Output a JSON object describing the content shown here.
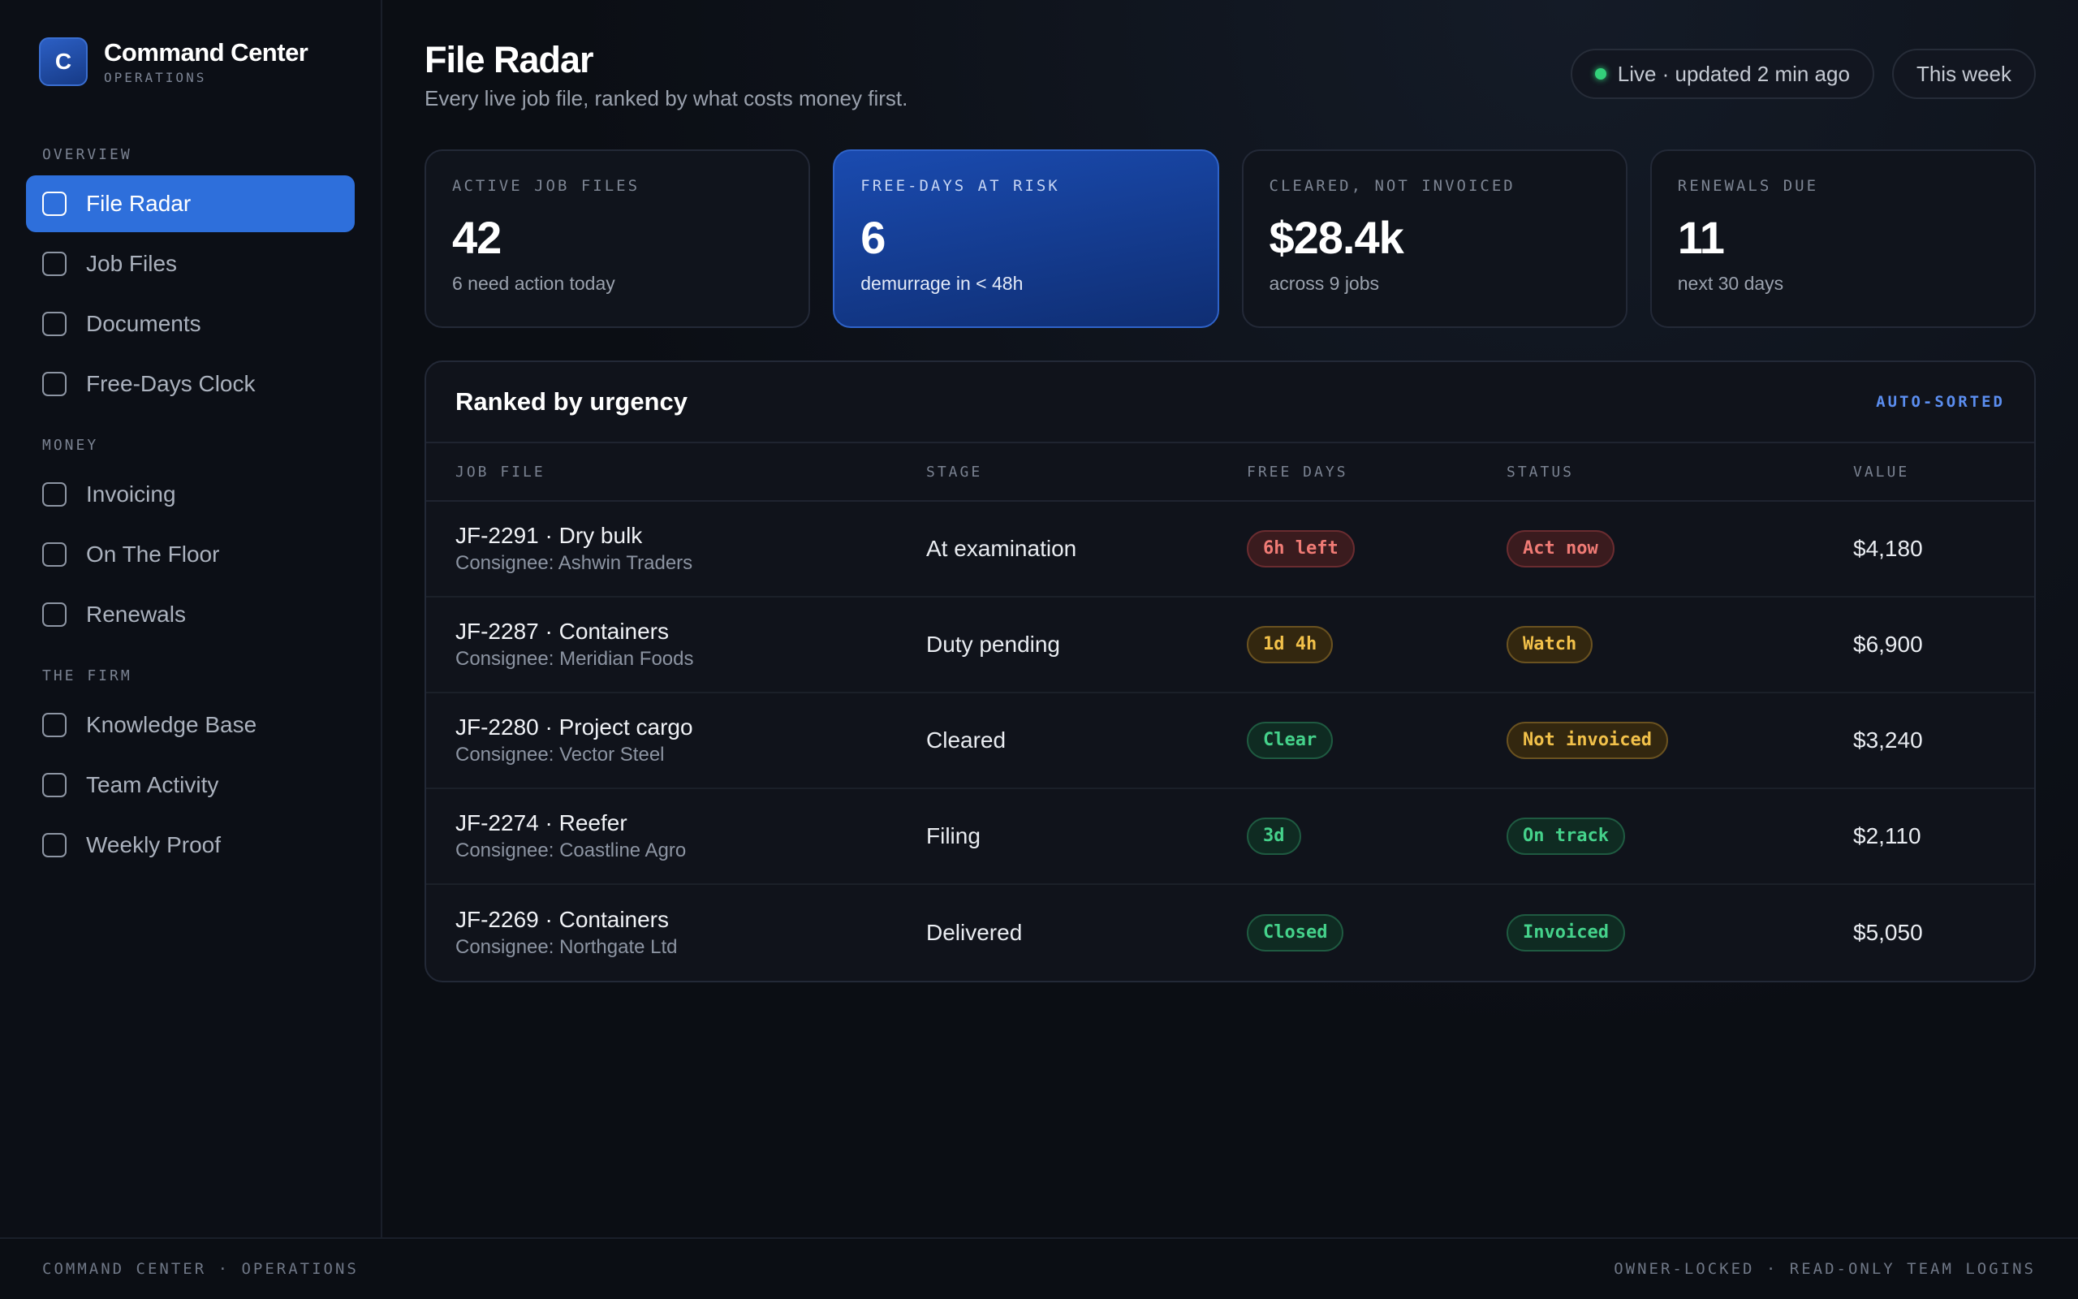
{
  "brand": {
    "logo_letter": "C",
    "name": "Command Center",
    "sub": "OPERATIONS"
  },
  "sidebar": {
    "sections": [
      {
        "heading": "OVERVIEW",
        "items": [
          {
            "label": "File Radar",
            "active": true
          },
          {
            "label": "Job Files"
          },
          {
            "label": "Documents"
          },
          {
            "label": "Free-Days Clock"
          }
        ]
      },
      {
        "heading": "MONEY",
        "items": [
          {
            "label": "Invoicing"
          },
          {
            "label": "On The Floor"
          },
          {
            "label": "Renewals"
          }
        ]
      },
      {
        "heading": "THE FIRM",
        "items": [
          {
            "label": "Knowledge Base"
          },
          {
            "label": "Team Activity"
          },
          {
            "label": "Weekly Proof"
          }
        ]
      }
    ]
  },
  "header": {
    "title": "File Radar",
    "subtitle": "Every live job file, ranked by what costs money first.",
    "live_label": "Live · updated 2 min ago",
    "period_label": "This week"
  },
  "stats": [
    {
      "label": "ACTIVE JOB FILES",
      "value": "42",
      "note": "6 need action today",
      "highlight": false
    },
    {
      "label": "FREE-DAYS AT RISK",
      "value": "6",
      "note": "demurrage in < 48h",
      "highlight": true
    },
    {
      "label": "CLEARED, NOT INVOICED",
      "value": "$28.4k",
      "note": "across 9 jobs",
      "highlight": false
    },
    {
      "label": "RENEWALS DUE",
      "value": "11",
      "note": "next 30 days",
      "highlight": false
    }
  ],
  "table": {
    "title": "Ranked by urgency",
    "tag": "AUTO-SORTED",
    "columns": [
      "JOB FILE",
      "STAGE",
      "FREE DAYS",
      "STATUS",
      "VALUE"
    ],
    "rows": [
      {
        "job": "JF-2291 · Dry bulk",
        "consignee": "Consignee: Ashwin Traders",
        "stage": "At examination",
        "free_days": "6h left",
        "free_tone": "red",
        "status": "Act now",
        "status_tone": "red",
        "value": "$4,180"
      },
      {
        "job": "JF-2287 · Containers",
        "consignee": "Consignee: Meridian Foods",
        "stage": "Duty pending",
        "free_days": "1d 4h",
        "free_tone": "amber",
        "status": "Watch",
        "status_tone": "amber",
        "value": "$6,900"
      },
      {
        "job": "JF-2280 · Project cargo",
        "consignee": "Consignee: Vector Steel",
        "stage": "Cleared",
        "free_days": "Clear",
        "free_tone": "green",
        "status": "Not invoiced",
        "status_tone": "amber",
        "value": "$3,240"
      },
      {
        "job": "JF-2274 · Reefer",
        "consignee": "Consignee: Coastline Agro",
        "stage": "Filing",
        "free_days": "3d",
        "free_tone": "green",
        "status": "On track",
        "status_tone": "green",
        "value": "$2,110"
      },
      {
        "job": "JF-2269 · Containers",
        "consignee": "Consignee: Northgate Ltd",
        "stage": "Delivered",
        "free_days": "Closed",
        "free_tone": "green",
        "status": "Invoiced",
        "status_tone": "green",
        "value": "$5,050"
      }
    ]
  },
  "footer": {
    "left": "COMMAND CENTER · OPERATIONS",
    "right": "OWNER-LOCKED · READ-ONLY TEAM LOGINS"
  },
  "colors": {
    "accent": "#2e6fdb",
    "live": "#33d17a",
    "red": "#f07b75",
    "amber": "#f2c14a",
    "green": "#45d28b"
  }
}
